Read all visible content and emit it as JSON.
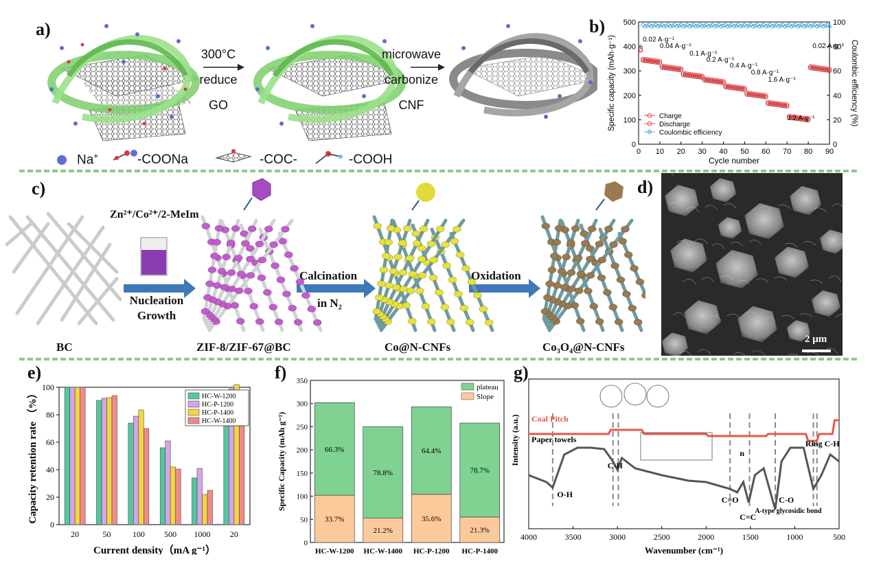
{
  "panels": {
    "a": "a)",
    "b": "b)",
    "c": "c)",
    "d": "d)",
    "e": "e)",
    "f": "f)",
    "g": "g)"
  },
  "panel_a": {
    "step1": [
      "300°C",
      "reduce",
      "GO"
    ],
    "step2": [
      "microwave",
      "carbonize",
      "CNF"
    ],
    "legend": {
      "na": "Na",
      "na_sup": "+",
      "coona": "-COONa",
      "coc": "-COC-",
      "cooh": "-COOH"
    }
  },
  "panel_c": {
    "reagent": "Zn²⁺/Co²⁺/2-MeIm",
    "arrow1": [
      "Nucleation",
      "Growth"
    ],
    "arrow2": [
      "Calcination",
      "in N₂"
    ],
    "arrow3": "Oxidation",
    "labels": [
      "BC",
      "ZIF-8/ZIF-67@BC",
      "Co@N-CNFs",
      "Co₃O₄@N-CNFs"
    ],
    "colors": {
      "zif": "#c45bd0",
      "co": "#e8e23a",
      "co3o4": "#9a7a4e",
      "arrow": "#3f78b8",
      "fiber": "#cfd3d4",
      "fiber2": "#6f9aa0"
    }
  },
  "panel_d": {
    "scalebar": "2 μm"
  },
  "chart_data": [
    {
      "id": "b",
      "type": "scatter",
      "xlabel": "Cycle number",
      "ylabel": "Specific capacity (mAh·g⁻¹)",
      "y2label": "Coulombic efficiency (%)",
      "xlim": [
        0,
        90
      ],
      "ylim": [
        0,
        500
      ],
      "y2lim": [
        0,
        100
      ],
      "xticks": [
        0,
        10,
        20,
        30,
        40,
        50,
        60,
        70,
        80,
        90
      ],
      "yticks": [
        0,
        100,
        200,
        300,
        400,
        500
      ],
      "y2ticks": [
        0,
        20,
        40,
        60,
        80,
        100
      ],
      "rate_labels": [
        "0.02 A·g⁻¹",
        "0.04 A·g⁻¹",
        "0.1 A·g⁻¹",
        "0.2 A·g⁻¹",
        "0.4 A·g⁻¹",
        "0.8 A·g⁻¹",
        "1.6 A·g⁻¹",
        "3.2 A·g⁻¹",
        "0.02 A·g⁻¹"
      ],
      "segments": [
        [
          1,
          10,
          350
        ],
        [
          11,
          20,
          320
        ],
        [
          21,
          30,
          290
        ],
        [
          31,
          40,
          268
        ],
        [
          41,
          50,
          240
        ],
        [
          51,
          60,
          210
        ],
        [
          61,
          70,
          172
        ],
        [
          71,
          80,
          115
        ],
        [
          81,
          90,
          318
        ]
      ],
      "ce": 97,
      "series": [
        {
          "name": "Charge",
          "color": "#e84a4a"
        },
        {
          "name": "Discharge",
          "color": "#e84a4a"
        },
        {
          "name": "Coulombic efficiency",
          "color": "#4aa8e0"
        }
      ],
      "legend": "bottom-left"
    },
    {
      "id": "e",
      "type": "bar",
      "categories": [
        "20",
        "50",
        "100",
        "500",
        "1000",
        "20"
      ],
      "series": [
        {
          "name": "HC-W-1200",
          "values": [
            100,
            90.5,
            74,
            56,
            34,
            90.5
          ],
          "color": "#55c7a0"
        },
        {
          "name": "HC-P-1200",
          "values": [
            100,
            92,
            79,
            61,
            41,
            99
          ],
          "color": "#d3a6e6"
        },
        {
          "name": "HC-P-1400",
          "values": [
            100,
            92.5,
            83.5,
            42,
            22,
            102
          ],
          "color": "#f3d545"
        },
        {
          "name": "HC-W-1400",
          "values": [
            100,
            94,
            70,
            40.5,
            25,
            95
          ],
          "color": "#f08a8a"
        }
      ],
      "ylabel": "Capacity retention rate （%）",
      "xlabel": "Current density（mA g⁻¹）",
      "ylim": [
        0,
        100
      ],
      "yticks": [
        0,
        20,
        40,
        60,
        80,
        100
      ],
      "legend": "top-right"
    },
    {
      "id": "f",
      "type": "bar",
      "stacked": true,
      "categories": [
        "HC-W-1200",
        "HC-W-1400",
        "HC-P-1200",
        "HC-P-1400"
      ],
      "series": [
        {
          "name": "Slope",
          "values": [
            102,
            53,
            104,
            55
          ],
          "labels": [
            "33.7%",
            "21.2%",
            "35.6%",
            "21.3%"
          ],
          "color": "#fcc99a"
        },
        {
          "name": "plateau",
          "values": [
            200,
            197,
            189,
            203
          ],
          "labels": [
            "66.3%",
            "78.8%",
            "64.4%",
            "78.7%"
          ],
          "color": "#7fd291"
        }
      ],
      "ylabel": "Specific Capacity (mAh g⁻¹)",
      "ylim": [
        0,
        350
      ],
      "yticks": [
        0,
        50,
        100,
        150,
        200,
        250,
        300,
        350
      ],
      "legend": "top-right"
    },
    {
      "id": "g",
      "type": "line",
      "xlabel": "Wavenumber (cm⁻¹)",
      "ylabel": "Intensity (a.u.)",
      "xlim": [
        4000,
        500
      ],
      "xticks": [
        4000,
        3500,
        3000,
        2500,
        2000,
        1500,
        1000,
        500
      ],
      "series": [
        {
          "name": "Coal Pitch",
          "color": "#e8574a"
        },
        {
          "name": "Paper towels",
          "color": "#555555"
        }
      ],
      "annotations": [
        "O-H",
        "C-H",
        "C=O",
        "C=C",
        "C-O",
        "A-type glycosidic bond",
        "Ring C-H",
        "n"
      ],
      "marker_lines": [
        3730,
        3050,
        2990,
        1730,
        1510,
        1220,
        790,
        750
      ]
    }
  ]
}
